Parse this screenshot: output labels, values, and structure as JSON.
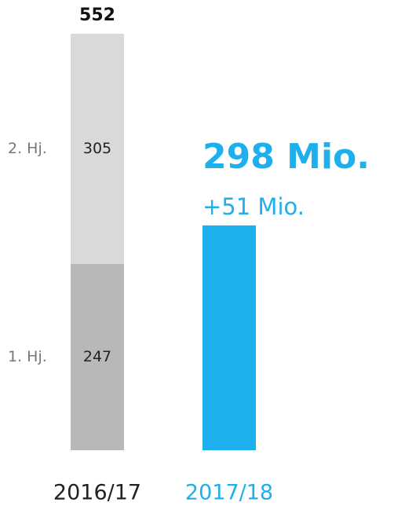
{
  "chart_data": {
    "type": "bar",
    "categories": [
      "2016/17",
      "2017/18"
    ],
    "series": [
      {
        "name": "1. Hj.",
        "color": "#b8b8b8",
        "values": [
          247,
          null
        ]
      },
      {
        "name": "2. Hj.",
        "color": "#d9d9d9",
        "values": [
          305,
          null
        ]
      },
      {
        "color": "#1eb0ed",
        "values": [
          null,
          298
        ],
        "value_labels": [
          null,
          "298 Mio."
        ]
      }
    ],
    "totals": [
      552,
      null
    ],
    "annotations": [
      {
        "text": "+51 Mio."
      }
    ],
    "ylim": [
      0,
      552
    ]
  }
}
